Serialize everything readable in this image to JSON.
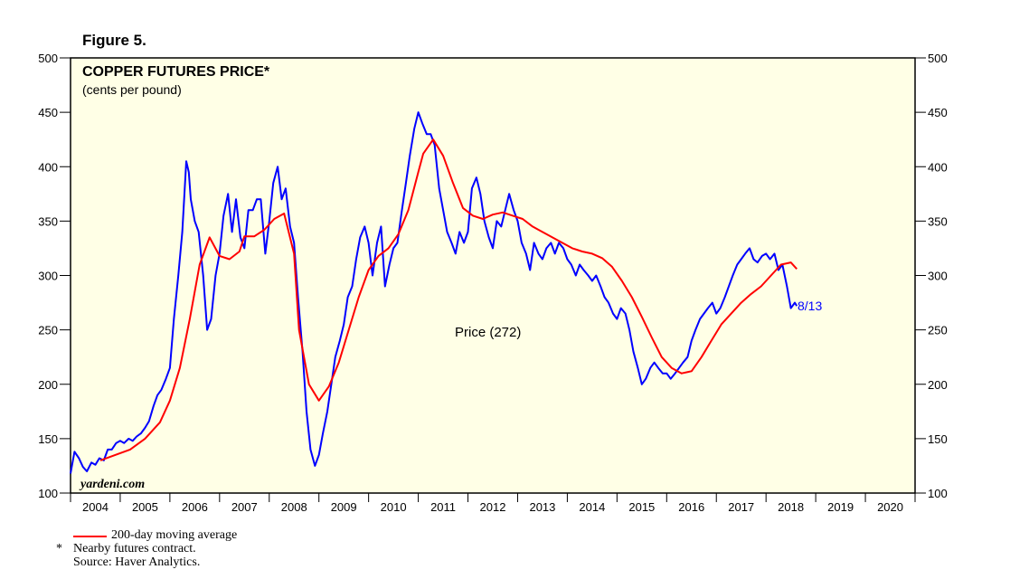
{
  "figure_label": "Figure 5.",
  "chart_data": {
    "type": "line",
    "title": "COPPER FUTURES PRICE*",
    "subtitle": "(cents per pound)",
    "watermark": "yardeni.com",
    "ylim": [
      100,
      500
    ],
    "yticks": [
      100,
      150,
      200,
      250,
      300,
      350,
      400,
      450,
      500
    ],
    "xlim": [
      2004.0,
      2021.0
    ],
    "xtick_labels": [
      "2004",
      "2005",
      "2006",
      "2007",
      "2008",
      "2009",
      "2010",
      "2011",
      "2012",
      "2013",
      "2014",
      "2015",
      "2016",
      "2017",
      "2018",
      "2019",
      "2020"
    ],
    "annotations": {
      "price_label": "Price (272)",
      "end_label": "8/13"
    },
    "colors": {
      "background": "#ffffe6",
      "price": "#0000ff",
      "moving_average": "#ff0000",
      "end_label": "#0000ff"
    },
    "series": [
      {
        "name": "Price",
        "x": [
          2004.0,
          2004.08,
          2004.17,
          2004.25,
          2004.33,
          2004.42,
          2004.5,
          2004.58,
          2004.67,
          2004.75,
          2004.83,
          2004.92,
          2005.0,
          2005.08,
          2005.17,
          2005.25,
          2005.33,
          2005.42,
          2005.5,
          2005.58,
          2005.67,
          2005.75,
          2005.83,
          2005.92,
          2006.0,
          2006.08,
          2006.17,
          2006.25,
          2006.33,
          2006.38,
          2006.42,
          2006.5,
          2006.58,
          2006.67,
          2006.75,
          2006.83,
          2006.92,
          2007.0,
          2007.08,
          2007.17,
          2007.25,
          2007.33,
          2007.42,
          2007.5,
          2007.58,
          2007.67,
          2007.75,
          2007.83,
          2007.92,
          2008.0,
          2008.08,
          2008.17,
          2008.25,
          2008.33,
          2008.42,
          2008.5,
          2008.58,
          2008.67,
          2008.75,
          2008.83,
          2008.92,
          2009.0,
          2009.08,
          2009.17,
          2009.25,
          2009.33,
          2009.42,
          2009.5,
          2009.58,
          2009.67,
          2009.75,
          2009.83,
          2009.92,
          2010.0,
          2010.08,
          2010.17,
          2010.25,
          2010.33,
          2010.42,
          2010.5,
          2010.58,
          2010.67,
          2010.75,
          2010.83,
          2010.92,
          2011.0,
          2011.08,
          2011.17,
          2011.25,
          2011.33,
          2011.42,
          2011.5,
          2011.58,
          2011.67,
          2011.75,
          2011.83,
          2011.92,
          2012.0,
          2012.08,
          2012.17,
          2012.25,
          2012.33,
          2012.42,
          2012.5,
          2012.58,
          2012.67,
          2012.75,
          2012.83,
          2012.92,
          2013.0,
          2013.08,
          2013.17,
          2013.25,
          2013.33,
          2013.42,
          2013.5,
          2013.58,
          2013.67,
          2013.75,
          2013.83,
          2013.92,
          2014.0,
          2014.08,
          2014.17,
          2014.25,
          2014.33,
          2014.42,
          2014.5,
          2014.58,
          2014.67,
          2014.75,
          2014.83,
          2014.92,
          2015.0,
          2015.08,
          2015.17,
          2015.25,
          2015.33,
          2015.42,
          2015.5,
          2015.58,
          2015.67,
          2015.75,
          2015.83,
          2015.92,
          2016.0,
          2016.08,
          2016.17,
          2016.25,
          2016.33,
          2016.42,
          2016.5,
          2016.58,
          2016.67,
          2016.75,
          2016.83,
          2016.92,
          2017.0,
          2017.08,
          2017.17,
          2017.25,
          2017.33,
          2017.42,
          2017.5,
          2017.58,
          2017.67,
          2017.75,
          2017.83,
          2017.92,
          2018.0,
          2018.08,
          2018.17,
          2018.25,
          2018.33,
          2018.42,
          2018.5,
          2018.58,
          2018.62
        ],
        "values": [
          118,
          138,
          132,
          124,
          120,
          128,
          126,
          132,
          130,
          140,
          140,
          146,
          148,
          146,
          150,
          148,
          152,
          155,
          160,
          166,
          180,
          190,
          195,
          205,
          215,
          260,
          300,
          340,
          405,
          395,
          370,
          350,
          340,
          300,
          250,
          260,
          300,
          320,
          355,
          375,
          340,
          370,
          335,
          325,
          360,
          360,
          370,
          370,
          320,
          350,
          385,
          400,
          370,
          380,
          345,
          330,
          280,
          230,
          175,
          140,
          125,
          135,
          155,
          175,
          200,
          225,
          240,
          255,
          280,
          290,
          315,
          335,
          345,
          330,
          300,
          330,
          345,
          290,
          310,
          325,
          330,
          360,
          385,
          410,
          435,
          450,
          440,
          430,
          430,
          420,
          380,
          360,
          340,
          330,
          320,
          340,
          330,
          340,
          380,
          390,
          375,
          350,
          335,
          325,
          350,
          345,
          360,
          375,
          360,
          350,
          330,
          320,
          305,
          330,
          320,
          315,
          325,
          330,
          320,
          330,
          325,
          315,
          310,
          300,
          310,
          305,
          300,
          295,
          300,
          290,
          280,
          275,
          265,
          260,
          270,
          265,
          250,
          230,
          215,
          200,
          205,
          215,
          220,
          215,
          210,
          210,
          205,
          210,
          215,
          220,
          225,
          240,
          250,
          260,
          265,
          270,
          275,
          265,
          270,
          280,
          290,
          300,
          310,
          315,
          320,
          325,
          315,
          312,
          318,
          320,
          315,
          320,
          305,
          310,
          290,
          270,
          275,
          272
        ]
      },
      {
        "name": "200-day moving average",
        "x": [
          2004.6,
          2004.9,
          2005.2,
          2005.5,
          2005.8,
          2006.0,
          2006.2,
          2006.4,
          2006.6,
          2006.8,
          2007.0,
          2007.2,
          2007.4,
          2007.5,
          2007.7,
          2007.9,
          2008.1,
          2008.3,
          2008.5,
          2008.6,
          2008.8,
          2009.0,
          2009.2,
          2009.4,
          2009.6,
          2009.8,
          2010.0,
          2010.2,
          2010.4,
          2010.6,
          2010.8,
          2011.0,
          2011.1,
          2011.3,
          2011.5,
          2011.7,
          2011.9,
          2012.1,
          2012.3,
          2012.5,
          2012.7,
          2012.9,
          2013.1,
          2013.3,
          2013.5,
          2013.7,
          2013.9,
          2014.1,
          2014.3,
          2014.5,
          2014.7,
          2014.9,
          2015.1,
          2015.3,
          2015.5,
          2015.7,
          2015.9,
          2016.1,
          2016.3,
          2016.5,
          2016.7,
          2016.9,
          2017.1,
          2017.3,
          2017.5,
          2017.7,
          2017.9,
          2018.1,
          2018.3,
          2018.5,
          2018.62
        ],
        "values": [
          130,
          135,
          140,
          150,
          165,
          185,
          215,
          260,
          310,
          335,
          318,
          315,
          322,
          336,
          336,
          342,
          352,
          357,
          320,
          250,
          200,
          185,
          198,
          220,
          250,
          280,
          305,
          318,
          325,
          338,
          360,
          395,
          412,
          425,
          410,
          385,
          362,
          355,
          352,
          356,
          358,
          355,
          352,
          345,
          340,
          335,
          330,
          325,
          322,
          320,
          316,
          308,
          295,
          280,
          262,
          243,
          225,
          215,
          210,
          212,
          225,
          240,
          255,
          265,
          275,
          283,
          290,
          300,
          310,
          312,
          306
        ]
      }
    ],
    "legend": [
      {
        "label": "200-day moving average",
        "color": "#ff0000"
      }
    ]
  },
  "notes": {
    "footnote_marker": "*",
    "footnote": "Nearby futures contract.",
    "source": "Source: Haver Analytics."
  }
}
